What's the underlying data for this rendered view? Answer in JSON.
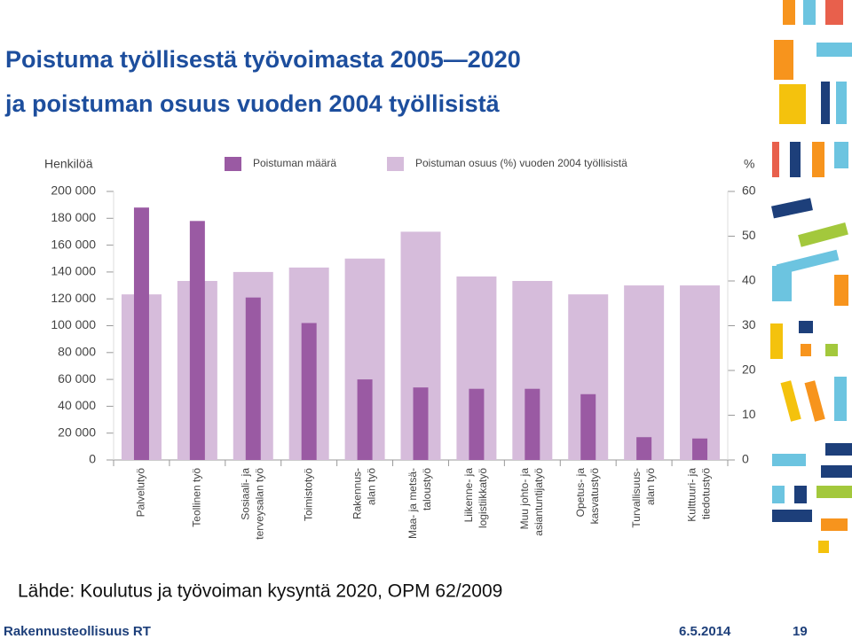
{
  "title": [
    "Poistuma työllisestä työvoimasta 2005—2020",
    "ja poistuman osuus vuoden 2004 työllisistä"
  ],
  "source": "Lähde: Koulutus ja työvoiman kysyntä 2020, OPM 62/2009",
  "footer": {
    "organization": "Rakennusteollisuus RT",
    "date": "6.5.2014",
    "page": "19"
  },
  "chart_data": {
    "type": "bar",
    "y_label": "Henkilöä",
    "y2_label": "%",
    "categories": [
      [
        "Palvelutyö"
      ],
      [
        "Teollinen työ"
      ],
      [
        "Sosiaali- ja",
        "terveysalan työ"
      ],
      [
        "Toimistotyö"
      ],
      [
        "Rakennus-",
        "alan työ"
      ],
      [
        "Maa- ja metsä-",
        "taloustyö"
      ],
      [
        "Liikenne- ja",
        "logistiikkatyö"
      ],
      [
        "Muu johto- ja",
        "asiantuntijatyö"
      ],
      [
        "Opetus- ja",
        "kasvatustyö"
      ],
      [
        "Turvallisuus-",
        "alan työ"
      ],
      [
        "Kulttuuri- ja",
        "tiedotustyö"
      ]
    ],
    "series": [
      {
        "name": "Poistuman osuus (%) vuoden 2004 työllisistä",
        "color": "#d6bcdb",
        "axis": "y2",
        "values": [
          37,
          40,
          42,
          43,
          45,
          51,
          41,
          40,
          37,
          39,
          39
        ]
      },
      {
        "name": "Poistuman määrä",
        "color": "#9a5aa3",
        "values": [
          188000,
          178000,
          121000,
          102000,
          60000,
          54000,
          53000,
          53000,
          49000,
          17000,
          16000
        ]
      }
    ],
    "ylim": [
      0,
      200000
    ],
    "yticks": [
      0,
      {
        "value": 20000,
        "label": "20 000"
      },
      {
        "value": 40000,
        "label": "40 000"
      },
      {
        "value": 60000,
        "label": "60 000"
      },
      {
        "value": 80000,
        "label": "80 000"
      },
      {
        "value": 100000,
        "label": "100 000"
      },
      {
        "value": 120000,
        "label": "120 000"
      },
      {
        "value": 140000,
        "label": "140 000"
      },
      {
        "value": 160000,
        "label": "160 000"
      },
      {
        "value": 180000,
        "label": "180 000"
      },
      {
        "value": 200000,
        "label": "200 000"
      }
    ],
    "y2lim": [
      0,
      60
    ],
    "y2ticks": [
      0,
      10,
      20,
      30,
      40,
      50,
      60
    ]
  }
}
